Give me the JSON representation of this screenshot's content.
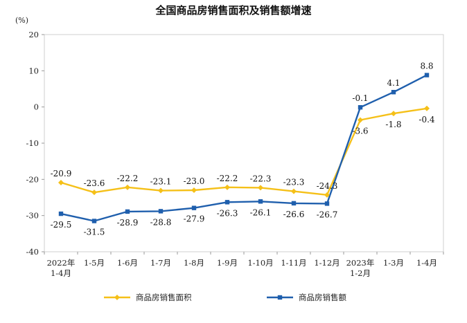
{
  "chart_data": {
    "type": "line",
    "title": "全国商品房销售面积及销售额增速",
    "unit_label": "(%)",
    "ylim": [
      -40,
      20
    ],
    "yticks": [
      20,
      10,
      0,
      -10,
      -20,
      -30,
      -40
    ],
    "categories": [
      [
        "2022年",
        "1-4月"
      ],
      [
        "1-5月"
      ],
      [
        "1-6月"
      ],
      [
        "1-7月"
      ],
      [
        "1-8月"
      ],
      [
        "1-9月"
      ],
      [
        "1-10月"
      ],
      [
        "1-11月"
      ],
      [
        "1-12月"
      ],
      [
        "2023年",
        "1-2月"
      ],
      [
        "1-3月"
      ],
      [
        "1-4月"
      ]
    ],
    "series": [
      {
        "name": "商品房销售面积",
        "color": "#F5C018",
        "marker": "diamond",
        "values": [
          -20.9,
          -23.6,
          -22.2,
          -23.1,
          -23.0,
          -22.2,
          -22.3,
          -23.3,
          -24.3,
          -3.6,
          -1.8,
          -0.4
        ],
        "labels": [
          "-20.9",
          "-23.6",
          "-22.2",
          "-23.1",
          "-23.0",
          "-22.2",
          "-22.3",
          "-23.3",
          "-24.3",
          "-3.6",
          "-1.8",
          "-0.4"
        ],
        "label_pos": [
          "above",
          "above",
          "above",
          "above",
          "above",
          "above",
          "above",
          "above",
          "above",
          "below",
          "below",
          "below"
        ]
      },
      {
        "name": "商品房销售额",
        "color": "#1F5FAD",
        "marker": "square",
        "values": [
          -29.5,
          -31.5,
          -28.9,
          -28.8,
          -27.9,
          -26.3,
          -26.1,
          -26.6,
          -26.7,
          -0.1,
          4.1,
          8.8
        ],
        "labels": [
          "-29.5",
          "-31.5",
          "-28.9",
          "-28.8",
          "-27.9",
          "-26.3",
          "-26.1",
          "-26.6",
          "-26.7",
          "-0.1",
          "4.1",
          "8.8"
        ],
        "label_pos": [
          "below",
          "below",
          "below",
          "below",
          "below",
          "below",
          "below",
          "below",
          "below",
          "above",
          "above",
          "above"
        ]
      }
    ],
    "legend_position": "bottom"
  }
}
